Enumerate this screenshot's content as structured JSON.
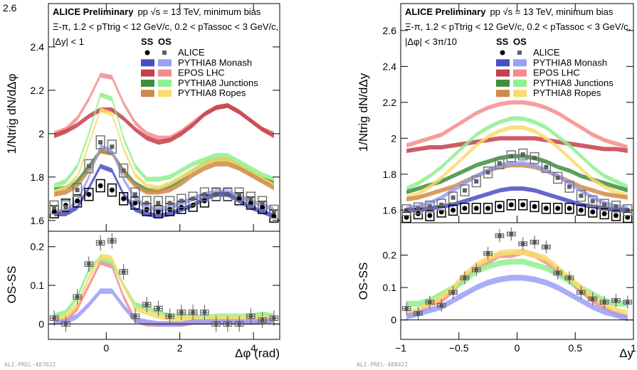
{
  "colors": {
    "alice_ss": "#000000",
    "alice_os": "#606060",
    "monash_ss": "#4a4ec4",
    "monash_os": "#9a9ef5",
    "epos_ss": "#c4404a",
    "epos_os": "#f58c8c",
    "junctions_ss": "#3e8e3e",
    "junctions_os": "#8ef08e",
    "ropes_ss": "#d08a4a",
    "ropes_os": "#f8dc6c"
  },
  "chart_data": [
    {
      "type": "line",
      "header": {
        "title": "ALICE Preliminary",
        "collision": "pp √s = 13 TeV, minimum bias",
        "selection": "Ξ-π, 1.2 < pTtrig < 12 GeV/c, 0.2 < pTassoc < 3 GeV/c,",
        "cut": "|Δy| < 1"
      },
      "legend_columns": [
        "SS",
        "OS"
      ],
      "legend": [
        "ALICE",
        "PYTHIA8 Monash",
        "EPOS LHC",
        "PYTHIA8 Junctions",
        "PYTHIA8 Ropes"
      ],
      "ylabel": "1/Ntrig dN/dΔφ",
      "ylabel_ratio": "OS-SS",
      "xlabel": "Δφ (rad)",
      "xlim": [
        -1.5708,
        4.7124
      ],
      "ylim": [
        1.55,
        2.6
      ],
      "ylim_ratio": [
        -0.04,
        0.24
      ],
      "yticks": [
        "1.6",
        "1.8",
        "2",
        "2.2",
        "2.4",
        "2.6"
      ],
      "yticks_ratio": [
        "0",
        "0.1",
        "0.2"
      ],
      "xticks": [
        "0",
        "2",
        "4"
      ],
      "tag": "ALI-PREL-487622",
      "x": [
        -1.4137,
        -1.0996,
        -0.7854,
        -0.4712,
        -0.1571,
        0.1571,
        0.4712,
        0.7854,
        1.0996,
        1.4137,
        1.7279,
        2.042,
        2.3562,
        2.6704,
        2.9845,
        3.2987,
        3.6128,
        3.927,
        4.2412,
        4.5553
      ],
      "series": {
        "alice_ss": [
          1.64,
          1.67,
          1.69,
          1.72,
          1.76,
          1.74,
          1.7,
          1.68,
          1.65,
          1.64,
          1.65,
          1.66,
          1.67,
          1.69,
          1.72,
          1.72,
          1.7,
          1.68,
          1.66,
          1.62
        ],
        "alice_os": [
          1.66,
          1.66,
          1.74,
          1.85,
          1.96,
          1.94,
          1.83,
          1.72,
          1.68,
          1.68,
          1.68,
          1.69,
          1.7,
          1.72,
          1.72,
          1.72,
          1.72,
          1.7,
          1.68,
          1.64
        ],
        "monash_ss": [
          1.63,
          1.63,
          1.66,
          1.75,
          1.85,
          1.83,
          1.72,
          1.65,
          1.63,
          1.62,
          1.63,
          1.65,
          1.67,
          1.7,
          1.72,
          1.72,
          1.69,
          1.66,
          1.64,
          1.62
        ],
        "monash_os": [
          1.64,
          1.64,
          1.69,
          1.8,
          1.94,
          1.92,
          1.79,
          1.7,
          1.66,
          1.65,
          1.66,
          1.68,
          1.7,
          1.72,
          1.73,
          1.73,
          1.71,
          1.69,
          1.67,
          1.65
        ],
        "epos_ss": [
          1.99,
          2.01,
          2.04,
          2.08,
          2.11,
          2.11,
          2.07,
          2.02,
          1.98,
          1.96,
          1.97,
          2.0,
          2.04,
          2.09,
          2.12,
          2.13,
          2.1,
          2.06,
          2.02,
          1.99
        ],
        "epos_os": [
          2.0,
          2.02,
          2.07,
          2.16,
          2.27,
          2.26,
          2.14,
          2.05,
          2.0,
          1.98,
          1.98,
          2.01,
          2.05,
          2.09,
          2.12,
          2.13,
          2.1,
          2.06,
          2.02,
          2.0
        ],
        "junctions_ss": [
          1.74,
          1.75,
          1.78,
          1.85,
          1.92,
          1.91,
          1.83,
          1.77,
          1.74,
          1.74,
          1.76,
          1.79,
          1.83,
          1.86,
          1.88,
          1.88,
          1.85,
          1.82,
          1.79,
          1.77
        ],
        "junctions_os": [
          1.76,
          1.78,
          1.85,
          2.0,
          2.18,
          2.16,
          1.98,
          1.85,
          1.79,
          1.79,
          1.8,
          1.83,
          1.86,
          1.88,
          1.9,
          1.9,
          1.87,
          1.84,
          1.81,
          1.79
        ],
        "ropes_ss": [
          1.72,
          1.73,
          1.76,
          1.83,
          1.92,
          1.91,
          1.82,
          1.76,
          1.73,
          1.73,
          1.74,
          1.77,
          1.81,
          1.84,
          1.86,
          1.86,
          1.84,
          1.81,
          1.78,
          1.75
        ],
        "ropes_os": [
          1.73,
          1.75,
          1.8,
          1.95,
          2.11,
          2.09,
          1.93,
          1.81,
          1.76,
          1.75,
          1.77,
          1.8,
          1.83,
          1.86,
          1.88,
          1.88,
          1.85,
          1.82,
          1.79,
          1.76
        ]
      },
      "ratio": {
        "alice": [
          0.015,
          0.0,
          0.07,
          0.155,
          0.21,
          0.215,
          0.135,
          0.02,
          0.05,
          0.04,
          0.02,
          0.03,
          0.03,
          0.03,
          0.0,
          0.0,
          0.0,
          0.02,
          0.01,
          0.015
        ],
        "monash": [
          0.005,
          0.005,
          0.02,
          0.05,
          0.085,
          0.085,
          0.045,
          0.01,
          0.005,
          0.0,
          0.0,
          0.0,
          0.005,
          0.005,
          0.005,
          0.005,
          0.005,
          0.005,
          0.005,
          0.01
        ],
        "epos": [
          0.01,
          0.01,
          0.04,
          0.1,
          0.16,
          0.15,
          0.07,
          0.01,
          0.0,
          0.0,
          0.0,
          0.0,
          0.005,
          0.005,
          0.005,
          0.005,
          0.005,
          0.005,
          0.005,
          0.01
        ],
        "junctions": [
          0.02,
          0.03,
          0.07,
          0.14,
          0.17,
          0.16,
          0.1,
          0.05,
          0.04,
          0.03,
          0.02,
          0.02,
          0.02,
          0.015,
          0.02,
          0.02,
          0.02,
          0.02,
          0.025,
          0.02
        ],
        "ropes": [
          0.01,
          0.02,
          0.05,
          0.12,
          0.175,
          0.17,
          0.1,
          0.04,
          0.03,
          0.02,
          0.015,
          0.015,
          0.015,
          0.01,
          0.015,
          0.015,
          0.015,
          0.015,
          0.015,
          0.015
        ]
      }
    },
    {
      "type": "line",
      "header": {
        "title": "ALICE Preliminary",
        "collision": "pp √s = 13 TeV, minimum bias",
        "selection": "Ξ-π, 1.2 < pTtrig < 12 GeV/c, 0.2 < pTassoc < 3 GeV/c,",
        "cut": "|Δφ| < 3π/10"
      },
      "legend_columns": [
        "SS",
        "OS"
      ],
      "legend": [
        "ALICE",
        "PYTHIA8 Monash",
        "EPOS LHC",
        "PYTHIA8 Junctions",
        "PYTHIA8 Ropes"
      ],
      "ylabel": "1/Ntrig dN/dΔy",
      "ylabel_ratio": "OS-SS",
      "xlabel": "Δy",
      "xlim": [
        -1.0,
        1.0
      ],
      "ylim": [
        1.53,
        2.75
      ],
      "ylim_ratio": [
        -0.06,
        0.3
      ],
      "yticks": [
        "1.6",
        "1.8",
        "2",
        "2.2",
        "2.4",
        "2.6"
      ],
      "yticks_ratio": [
        "0",
        "0.1",
        "0.2"
      ],
      "xticks": [
        "−1",
        "−0.5",
        "0",
        "0.5",
        "1"
      ],
      "tag": "ALI-PREL-488422",
      "x": [
        -0.95,
        -0.85,
        -0.75,
        -0.65,
        -0.55,
        -0.45,
        -0.35,
        -0.25,
        -0.15,
        -0.05,
        0.05,
        0.15,
        0.25,
        0.35,
        0.45,
        0.55,
        0.65,
        0.75,
        0.85,
        0.95
      ],
      "series": {
        "alice_ss": [
          1.56,
          1.58,
          1.57,
          1.59,
          1.6,
          1.61,
          1.61,
          1.61,
          1.62,
          1.63,
          1.63,
          1.62,
          1.61,
          1.61,
          1.61,
          1.6,
          1.59,
          1.58,
          1.57,
          1.56
        ],
        "alice_os": [
          1.6,
          1.61,
          1.62,
          1.63,
          1.67,
          1.71,
          1.76,
          1.81,
          1.86,
          1.9,
          1.91,
          1.89,
          1.84,
          1.78,
          1.73,
          1.68,
          1.65,
          1.63,
          1.62,
          1.6
        ],
        "monash_ss": [
          1.6,
          1.6,
          1.61,
          1.62,
          1.63,
          1.65,
          1.67,
          1.69,
          1.71,
          1.72,
          1.72,
          1.71,
          1.69,
          1.67,
          1.65,
          1.63,
          1.62,
          1.61,
          1.6,
          1.6
        ],
        "monash_os": [
          1.61,
          1.62,
          1.64,
          1.67,
          1.71,
          1.75,
          1.79,
          1.82,
          1.85,
          1.86,
          1.86,
          1.85,
          1.82,
          1.79,
          1.75,
          1.71,
          1.67,
          1.64,
          1.62,
          1.61
        ],
        "epos_ss": [
          1.93,
          1.94,
          1.95,
          1.95,
          1.96,
          1.97,
          1.98,
          1.99,
          2.0,
          2.0,
          2.0,
          2.0,
          1.99,
          1.98,
          1.97,
          1.96,
          1.95,
          1.94,
          1.94,
          1.93
        ],
        "epos_os": [
          1.96,
          1.98,
          2.0,
          2.02,
          2.06,
          2.1,
          2.14,
          2.17,
          2.19,
          2.2,
          2.2,
          2.19,
          2.17,
          2.14,
          2.1,
          2.06,
          2.02,
          1.99,
          1.97,
          1.95
        ],
        "junctions_ss": [
          1.7,
          1.72,
          1.74,
          1.76,
          1.79,
          1.82,
          1.85,
          1.87,
          1.89,
          1.9,
          1.9,
          1.89,
          1.87,
          1.84,
          1.82,
          1.79,
          1.77,
          1.75,
          1.73,
          1.71
        ],
        "junctions_os": [
          1.72,
          1.75,
          1.79,
          1.84,
          1.9,
          1.96,
          2.02,
          2.06,
          2.09,
          2.11,
          2.11,
          2.09,
          2.06,
          2.01,
          1.96,
          1.9,
          1.84,
          1.79,
          1.76,
          1.73
        ],
        "ropes_ss": [
          1.66,
          1.67,
          1.69,
          1.71,
          1.73,
          1.76,
          1.79,
          1.82,
          1.84,
          1.85,
          1.85,
          1.84,
          1.82,
          1.79,
          1.76,
          1.73,
          1.71,
          1.69,
          1.68,
          1.67
        ],
        "ropes_os": [
          1.67,
          1.69,
          1.73,
          1.78,
          1.84,
          1.9,
          1.96,
          2.01,
          2.04,
          2.06,
          2.06,
          2.04,
          2.0,
          1.95,
          1.89,
          1.83,
          1.77,
          1.73,
          1.7,
          1.68
        ]
      },
      "ratio": {
        "alice": [
          0.035,
          0.02,
          0.055,
          0.045,
          0.085,
          0.13,
          0.155,
          0.205,
          0.26,
          0.265,
          0.235,
          0.24,
          0.225,
          0.145,
          0.13,
          0.085,
          0.065,
          0.055,
          0.06,
          0.055
        ],
        "monash": [
          0.01,
          0.02,
          0.03,
          0.04,
          0.06,
          0.08,
          0.1,
          0.115,
          0.125,
          0.13,
          0.13,
          0.125,
          0.115,
          0.1,
          0.08,
          0.06,
          0.04,
          0.025,
          0.015,
          0.005
        ],
        "epos": [
          0.02,
          0.02,
          0.05,
          0.06,
          0.09,
          0.13,
          0.16,
          0.18,
          0.2,
          0.2,
          0.21,
          0.2,
          0.18,
          0.15,
          0.12,
          0.09,
          0.06,
          0.04,
          0.02,
          0.01
        ],
        "junctions": [
          0.05,
          0.05,
          0.06,
          0.08,
          0.1,
          0.12,
          0.15,
          0.165,
          0.175,
          0.18,
          0.18,
          0.17,
          0.16,
          0.14,
          0.12,
          0.1,
          0.08,
          0.06,
          0.05,
          0.05
        ],
        "ropes": [
          0.02,
          0.03,
          0.05,
          0.07,
          0.1,
          0.14,
          0.17,
          0.19,
          0.205,
          0.21,
          0.21,
          0.2,
          0.19,
          0.16,
          0.13,
          0.1,
          0.07,
          0.05,
          0.03,
          0.02
        ]
      }
    }
  ]
}
